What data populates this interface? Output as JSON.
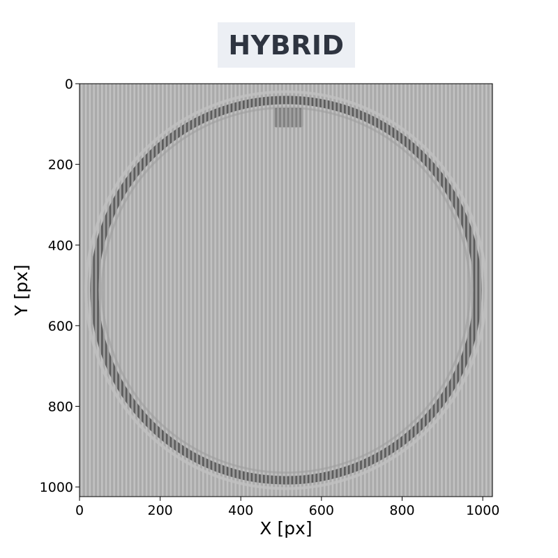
{
  "title": "HYBRID",
  "colors": {
    "title_bg": "#eceff4",
    "title_text": "#2e3440",
    "image_base": "#b4b4b4",
    "ring_dark": "#5a5a5a"
  },
  "chart_data": {
    "type": "heatmap",
    "title": "HYBRID",
    "xlabel": "X [px]",
    "ylabel": "Y [px]",
    "xlim": [
      0,
      1024
    ],
    "ylim": [
      1024,
      0
    ],
    "xticks": [
      0,
      200,
      400,
      600,
      800,
      1000
    ],
    "yticks": [
      0,
      200,
      400,
      600,
      800,
      1000
    ],
    "colormap": "gray",
    "grid": false,
    "features": {
      "ring_center": [
        512,
        512
      ],
      "ring_radius": 475,
      "ring_width": 38,
      "bright_block": {
        "x": [
          482,
          555
        ],
        "y": [
          60,
          108
        ]
      },
      "fringe_period_px": 10
    }
  }
}
